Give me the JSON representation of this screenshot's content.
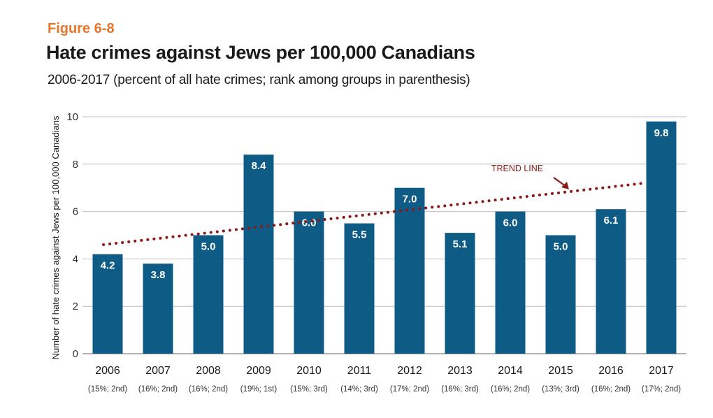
{
  "figure_label": "Figure 6-8",
  "chart_data": {
    "type": "bar",
    "title": "Hate crimes against Jews per 100,000 Canadians",
    "subtitle": "2006-2017 (percent of all hate crimes; rank among groups in parenthesis)",
    "ylabel": "Number of hate crimes against Jews per 100,000 Canadians",
    "xlabel": "",
    "ylim": [
      0,
      10
    ],
    "yticks": [
      0,
      2,
      4,
      6,
      8,
      10
    ],
    "grid": true,
    "categories": [
      "2006",
      "2007",
      "2008",
      "2009",
      "2010",
      "2011",
      "2012",
      "2013",
      "2014",
      "2015",
      "2016",
      "2017"
    ],
    "sublabels": [
      "(15%; 2nd)",
      "(16%; 2nd)",
      "(16%; 2nd)",
      "(19%; 1st)",
      "(15%; 3rd)",
      "(14%; 3rd)",
      "(17%; 2nd)",
      "(16%; 3rd)",
      "(16%; 2nd)",
      "(13%; 3rd)",
      "(16%; 2nd)",
      "(17%; 2nd)"
    ],
    "values": [
      4.2,
      3.8,
      5.0,
      8.4,
      6.0,
      5.5,
      7.0,
      5.1,
      6.0,
      5.0,
      6.1,
      9.8
    ],
    "value_labels": [
      "4.2",
      "3.8",
      "5.0",
      "8.4",
      "6.0",
      "5.5",
      "7.0",
      "5.1",
      "6.0",
      "5.0",
      "6.1",
      "9.8"
    ],
    "bar_color": "#0e5c85",
    "trend_line": {
      "label": "TREND LINE",
      "start": 4.6,
      "end": 7.2,
      "color": "#8b1a1a",
      "style": "dotted"
    }
  }
}
